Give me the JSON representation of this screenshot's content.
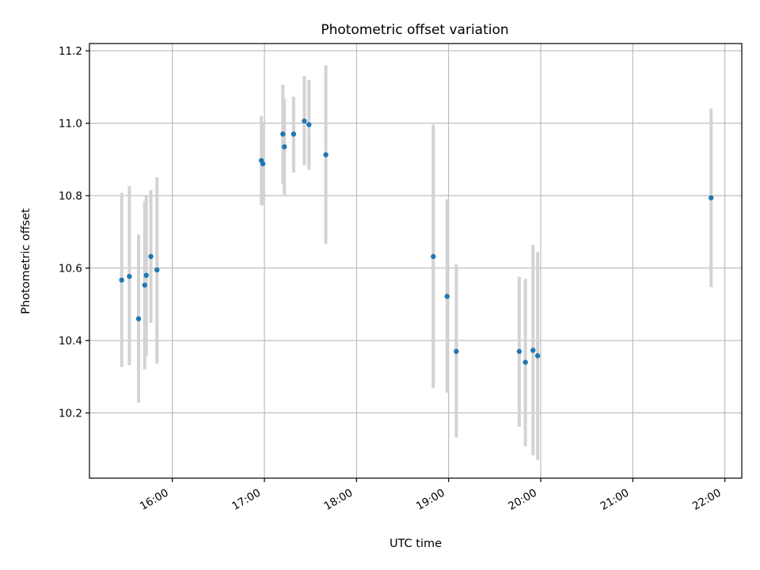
{
  "chart_data": {
    "type": "scatter",
    "title": "Photometric offset variation",
    "xlabel": "UTC time",
    "ylabel": "Photometric offset",
    "grid": true,
    "x_ticks": [
      "16:00",
      "17:00",
      "18:00",
      "19:00",
      "20:00",
      "21:00",
      "22:00"
    ],
    "y_ticks": [
      "10.2",
      "10.4",
      "10.6",
      "10.8",
      "11.0",
      "11.2"
    ],
    "xlim": [
      "15:06",
      "22:11"
    ],
    "ylim": [
      10.02,
      11.22
    ],
    "point_color": "#1f77b4",
    "errorbar_color": "#d3d3d3",
    "points": [
      {
        "time": "15:27",
        "y": 10.567,
        "low": 10.327,
        "high": 10.808
      },
      {
        "time": "15:32",
        "y": 10.577,
        "low": 10.332,
        "high": 10.826
      },
      {
        "time": "15:38",
        "y": 10.46,
        "low": 10.228,
        "high": 10.693
      },
      {
        "time": "15:42",
        "y": 10.553,
        "low": 10.32,
        "high": 10.785
      },
      {
        "time": "15:43",
        "y": 10.58,
        "low": 10.358,
        "high": 10.8
      },
      {
        "time": "15:46",
        "y": 10.632,
        "low": 10.449,
        "high": 10.816
      },
      {
        "time": "15:50",
        "y": 10.595,
        "low": 10.336,
        "high": 10.851
      },
      {
        "time": "16:58",
        "y": 10.897,
        "low": 10.773,
        "high": 11.02
      },
      {
        "time": "16:59",
        "y": 10.888,
        "low": 10.773,
        "high": 11.004
      },
      {
        "time": "17:12",
        "y": 10.97,
        "low": 10.833,
        "high": 11.106
      },
      {
        "time": "17:13",
        "y": 10.935,
        "low": 10.799,
        "high": 11.067
      },
      {
        "time": "17:19",
        "y": 10.97,
        "low": 10.864,
        "high": 11.073
      },
      {
        "time": "17:26",
        "y": 11.006,
        "low": 10.884,
        "high": 11.13
      },
      {
        "time": "17:29",
        "y": 10.996,
        "low": 10.871,
        "high": 11.12
      },
      {
        "time": "17:40",
        "y": 10.913,
        "low": 10.667,
        "high": 11.16
      },
      {
        "time": "18:50",
        "y": 10.632,
        "low": 10.269,
        "high": 10.996
      },
      {
        "time": "18:59",
        "y": 10.522,
        "low": 10.256,
        "high": 10.79
      },
      {
        "time": "19:05",
        "y": 10.37,
        "low": 10.132,
        "high": 10.61
      },
      {
        "time": "19:46",
        "y": 10.37,
        "low": 10.162,
        "high": 10.576
      },
      {
        "time": "19:50",
        "y": 10.34,
        "low": 10.108,
        "high": 10.57
      },
      {
        "time": "19:55",
        "y": 10.373,
        "low": 10.083,
        "high": 10.664
      },
      {
        "time": "19:58",
        "y": 10.358,
        "low": 10.07,
        "high": 10.645
      },
      {
        "time": "21:51",
        "y": 10.794,
        "low": 10.548,
        "high": 11.04
      }
    ]
  }
}
